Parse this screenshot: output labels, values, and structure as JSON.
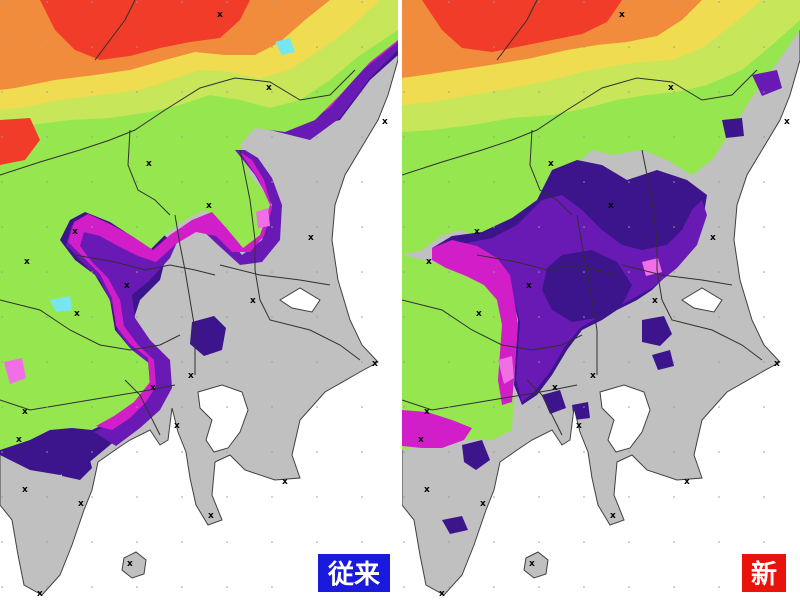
{
  "panels": [
    {
      "id": "left",
      "label": "従来",
      "badge_color": "#1a1adc"
    },
    {
      "id": "right",
      "label": "新",
      "badge_color": "#e8140c"
    }
  ],
  "colors": {
    "sea": "#ffffff",
    "land_no_data": "#c0c0c0",
    "purple_dark": "#3c148c",
    "purple": "#6a1ab4",
    "magenta": "#d21ec8",
    "pink": "#f06ee6",
    "cyan": "#78e6f0",
    "green": "#96e650",
    "yellow_green": "#c8e65a",
    "yellow": "#f0dc50",
    "orange": "#f08c3c",
    "red": "#f03c28"
  },
  "legend_marker_symbol": "x"
}
